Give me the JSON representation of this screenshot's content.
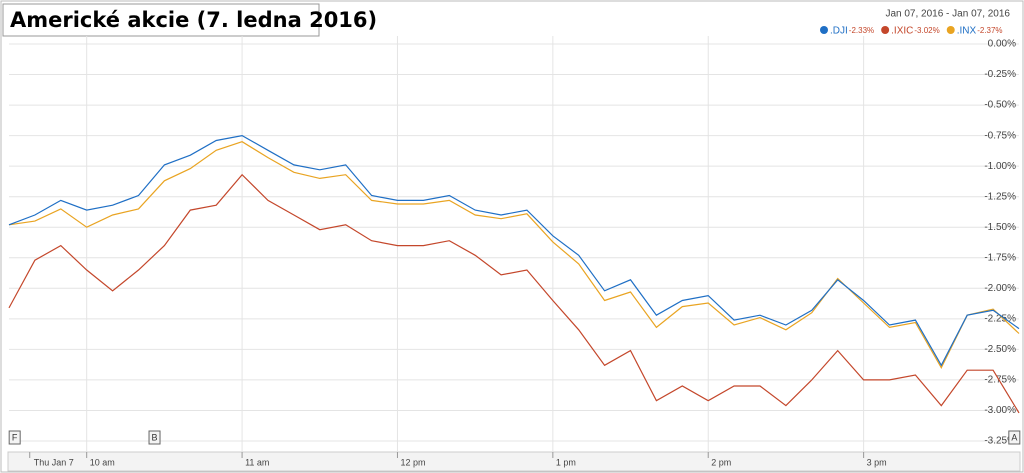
{
  "chart_data": {
    "type": "line",
    "title": "Americké akcie (7. ledna 2016)",
    "date_range": "Jan 07, 2016  -  Jan 07, 2016",
    "x": [
      0,
      10,
      20,
      30,
      40,
      50,
      60,
      70,
      80,
      90,
      100,
      110,
      120,
      130,
      140,
      150,
      160,
      170,
      180,
      190,
      200,
      210,
      220,
      230,
      240,
      250,
      260,
      270,
      280,
      290,
      300,
      310,
      320,
      330,
      340,
      350,
      360,
      370,
      380,
      390
    ],
    "xlim": [
      0,
      390
    ],
    "xticks": [
      {
        "value": 8,
        "label": "Thu Jan 7"
      },
      {
        "value": 30,
        "label": "10 am"
      },
      {
        "value": 90,
        "label": "11 am"
      },
      {
        "value": 150,
        "label": "12 pm"
      },
      {
        "value": 210,
        "label": "1 pm"
      },
      {
        "value": 270,
        "label": "2 pm"
      },
      {
        "value": 330,
        "label": "3 pm"
      }
    ],
    "ylim": [
      -3.25,
      0
    ],
    "yticks": [
      {
        "value": 0,
        "label": "0.00%"
      },
      {
        "value": -0.25,
        "label": "-0.25%"
      },
      {
        "value": -0.5,
        "label": "-0.50%"
      },
      {
        "value": -0.75,
        "label": "-0.75%"
      },
      {
        "value": -1,
        "label": "-1.00%"
      },
      {
        "value": -1.25,
        "label": "-1.25%"
      },
      {
        "value": -1.5,
        "label": "-1.50%"
      },
      {
        "value": -1.75,
        "label": "-1.75%"
      },
      {
        "value": -2,
        "label": "-2.00%"
      },
      {
        "value": -2.25,
        "label": "-2.25%"
      },
      {
        "value": -2.5,
        "label": "-2.50%"
      },
      {
        "value": -2.75,
        "label": "-2.75%"
      },
      {
        "value": -3,
        "label": "-3.00%"
      },
      {
        "value": -3.25,
        "label": "-3.25%"
      }
    ],
    "grid": true,
    "annotations": [
      {
        "label": "F",
        "x": 2
      },
      {
        "label": "B",
        "x": 56
      },
      {
        "label": "A",
        "x": 388
      }
    ],
    "series": [
      {
        "name": ".DJI",
        "change": "-2.33%",
        "color": "#1f6fc5",
        "values": [
          -1.48,
          -1.4,
          -1.28,
          -1.36,
          -1.32,
          -1.24,
          -0.99,
          -0.91,
          -0.79,
          -0.75,
          -0.87,
          -0.99,
          -1.03,
          -0.99,
          -1.24,
          -1.28,
          -1.28,
          -1.24,
          -1.36,
          -1.4,
          -1.36,
          -1.57,
          -1.73,
          -2.02,
          -1.93,
          -2.22,
          -2.1,
          -2.06,
          -2.26,
          -2.22,
          -2.3,
          -2.18,
          -1.93,
          -2.1,
          -2.3,
          -2.26,
          -2.63,
          -2.22,
          -2.18,
          -2.33
        ]
      },
      {
        "name": ".IXIC",
        "change": "-3.02%",
        "color": "#c4472b",
        "values": [
          -2.16,
          -1.77,
          -1.65,
          -1.85,
          -2.02,
          -1.85,
          -1.65,
          -1.36,
          -1.32,
          -1.07,
          -1.28,
          -1.4,
          -1.52,
          -1.48,
          -1.61,
          -1.65,
          -1.65,
          -1.61,
          -1.73,
          -1.89,
          -1.85,
          -2.1,
          -2.34,
          -2.63,
          -2.51,
          -2.92,
          -2.8,
          -2.92,
          -2.8,
          -2.8,
          -2.96,
          -2.75,
          -2.51,
          -2.75,
          -2.75,
          -2.71,
          -2.96,
          -2.67,
          -2.67,
          -3.02
        ]
      },
      {
        "name": ".INX",
        "change": "-2.37%",
        "color": "#e9a422",
        "values": [
          -1.48,
          -1.45,
          -1.35,
          -1.5,
          -1.4,
          -1.35,
          -1.12,
          -1.02,
          -0.87,
          -0.8,
          -0.93,
          -1.05,
          -1.1,
          -1.07,
          -1.28,
          -1.31,
          -1.31,
          -1.28,
          -1.4,
          -1.43,
          -1.39,
          -1.62,
          -1.8,
          -2.1,
          -2.03,
          -2.32,
          -2.15,
          -2.12,
          -2.3,
          -2.24,
          -2.34,
          -2.2,
          -1.92,
          -2.12,
          -2.32,
          -2.28,
          -2.65,
          -2.22,
          -2.17,
          -2.37
        ]
      }
    ]
  }
}
